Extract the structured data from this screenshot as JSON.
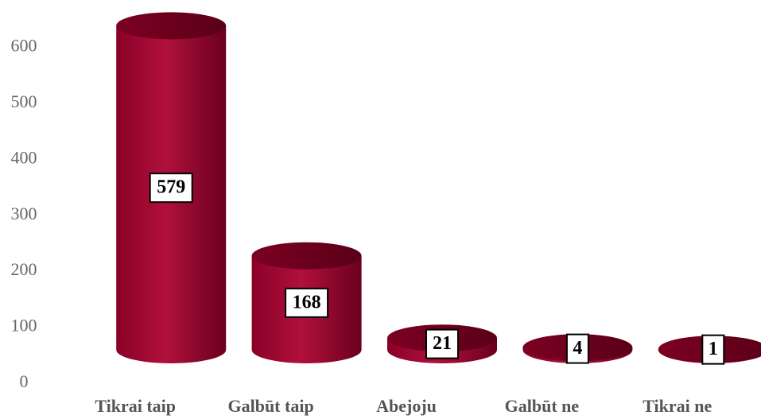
{
  "chart_data": {
    "type": "bar",
    "categories": [
      "Tikrai taip",
      "Galbūt taip",
      "Abejoju",
      "Galbūt ne",
      "Tikrai ne"
    ],
    "values": [
      579,
      168,
      21,
      4,
      1
    ],
    "color": "#a0002f",
    "ylim": [
      0,
      650
    ],
    "yticks": [
      0,
      100,
      200,
      300,
      400,
      500,
      600
    ],
    "grid": false
  }
}
